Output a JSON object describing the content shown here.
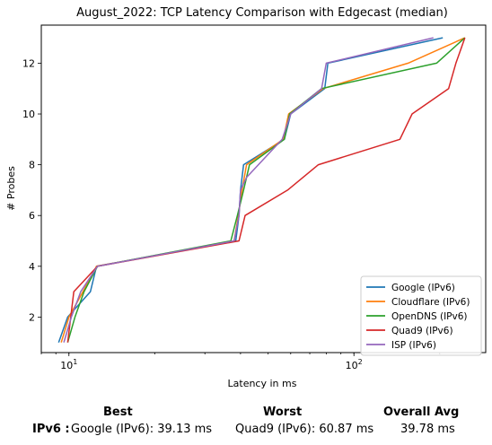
{
  "chart_data": {
    "type": "line",
    "title": "August_2022: TCP Latency Comparison with Edgecast (median)",
    "xlabel": "Latency in ms",
    "ylabel": "# Probes",
    "xscale": "log",
    "xlim": [
      8,
      290
    ],
    "ylim": [
      0.6,
      13.5
    ],
    "xticks": [
      {
        "value": 10,
        "label": "10^1"
      },
      {
        "value": 100,
        "label": "10^2"
      }
    ],
    "yticks": [
      2,
      4,
      6,
      8,
      10,
      12
    ],
    "grid": false,
    "legend_position": "lower right",
    "series": [
      {
        "name": "Google (IPv6)",
        "color": "#1f77b4",
        "x": [
          9.2,
          9.9,
          11.9,
          12.5,
          38.5,
          39.5,
          40.0,
          41.0,
          57.0,
          60.0,
          79.0,
          81.0,
          205.0
        ],
        "y": [
          1,
          2,
          3,
          4,
          5,
          6,
          7,
          8,
          9,
          10,
          11,
          12,
          13
        ]
      },
      {
        "name": "Cloudflare (IPv6)",
        "color": "#ff7f0e",
        "x": [
          9.4,
          10.0,
          11.2,
          12.5,
          38.0,
          39.3,
          40.5,
          42.0,
          56.5,
          59.0,
          78.0,
          155.0,
          245.0
        ],
        "y": [
          1,
          2,
          3,
          4,
          5,
          6,
          7,
          8,
          9,
          10,
          11,
          12,
          13
        ]
      },
      {
        "name": "OpenDNS (IPv6)",
        "color": "#2ca02c",
        "x": [
          9.9,
          10.5,
          11.3,
          12.6,
          37.0,
          39.0,
          41.0,
          43.0,
          57.0,
          59.5,
          77.0,
          195.0,
          245.0
        ],
        "y": [
          1,
          2,
          3,
          4,
          5,
          6,
          7,
          8,
          9,
          10,
          11,
          12,
          13
        ]
      },
      {
        "name": "Quad9 (IPv6)",
        "color": "#d62728",
        "x": [
          9.9,
          10.4,
          12.6,
          39.5,
          40.5,
          41.5,
          58.5,
          75.0,
          145.0,
          160.0,
          215.0,
          228.0,
          245.0
        ],
        "y": [
          1,
          3,
          4,
          5,
          5.5,
          6,
          7,
          8,
          9,
          10,
          11,
          12,
          13
        ]
      },
      {
        "name": "ISP (IPv6)",
        "color": "#9467bd",
        "x": [
          9.6,
          10.2,
          11.0,
          12.6,
          38.0,
          39.5,
          40.0,
          42.0,
          56.0,
          60.0,
          77.0,
          80.0,
          190.0
        ],
        "y": [
          1,
          2,
          3,
          4,
          5,
          6,
          7,
          7.5,
          9,
          10,
          11,
          12,
          13
        ]
      }
    ]
  },
  "summary": {
    "headers": {
      "best": "Best",
      "worst": "Worst",
      "avg": "Overall Avg"
    },
    "row_label": "IPv6 :",
    "best": "Google (IPv6): 39.13 ms",
    "worst": "Quad9 (IPv6): 60.87 ms",
    "avg": "39.78 ms"
  }
}
